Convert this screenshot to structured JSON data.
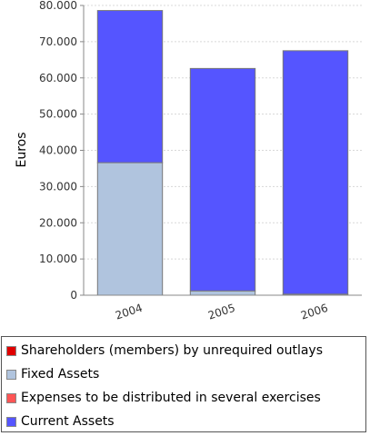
{
  "chart_data": {
    "type": "bar",
    "stacked": true,
    "categories": [
      "2004",
      "2005",
      "2006"
    ],
    "series": [
      {
        "name": "Shareholders (members) by unrequired outlays",
        "color": "#e00000",
        "values": [
          0,
          0,
          0
        ]
      },
      {
        "name": "Fixed Assets",
        "color": "#b0c4de",
        "values": [
          36600,
          1200,
          300
        ]
      },
      {
        "name": "Expenses to be distributed in several exercises",
        "color": "#ff5555",
        "values": [
          0,
          0,
          0
        ]
      },
      {
        "name": "Current Assets",
        "color": "#5555ff",
        "values": [
          42000,
          61400,
          67200
        ]
      }
    ],
    "ylabel": "Euros",
    "ylim": [
      0,
      80000
    ],
    "yticks": [
      0,
      10000,
      20000,
      30000,
      40000,
      50000,
      60000,
      70000,
      80000
    ],
    "ytick_labels": [
      "0",
      "10.000",
      "20.000",
      "30.000",
      "40.000",
      "50.000",
      "60.000",
      "70.000",
      "80.000"
    ],
    "grid": true,
    "legend_position": "bottom"
  }
}
